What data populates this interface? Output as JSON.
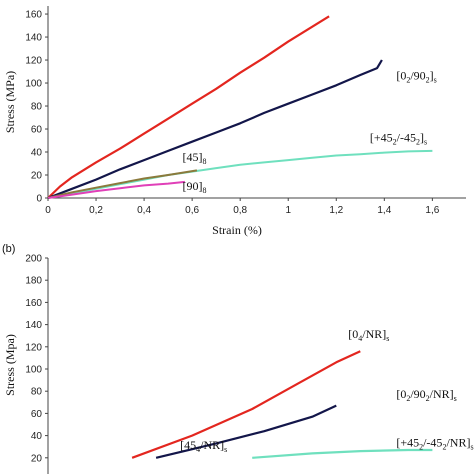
{
  "chart_data": [
    {
      "type": "line",
      "xlabel": "Strain (%)",
      "ylabel": "Stress (MPa)",
      "xlim": [
        0,
        1.7
      ],
      "ylim": [
        0,
        165
      ],
      "xticks": [
        "0",
        "0,2",
        "0,4",
        "0,6",
        "0,8",
        "1",
        "1,2",
        "1,4",
        "1,6"
      ],
      "yticks": [
        "0",
        "20",
        "40",
        "60",
        "80",
        "100",
        "120",
        "140",
        "160"
      ],
      "grid": false,
      "series": [
        {
          "color": "#e3261f",
          "x": [
            0,
            0.05,
            0.1,
            0.2,
            0.3,
            0.4,
            0.5,
            0.6,
            0.7,
            0.8,
            0.9,
            1.0,
            1.1,
            1.17
          ],
          "y": [
            0,
            10,
            18,
            31,
            43,
            56,
            69,
            82,
            95,
            109,
            122,
            136,
            149,
            158
          ]
        },
        {
          "name": "[0₂/90₂]ₛ",
          "color": "#13164a",
          "x": [
            0,
            0.1,
            0.2,
            0.3,
            0.4,
            0.5,
            0.6,
            0.7,
            0.8,
            0.9,
            1.0,
            1.1,
            1.2,
            1.3,
            1.37,
            1.39
          ],
          "y": [
            0,
            8,
            16,
            25,
            33,
            41,
            49,
            57,
            65,
            74,
            82,
            90,
            98,
            107,
            113,
            120
          ]
        },
        {
          "name": "[+45₂/-45₂]ₛ",
          "color": "#6fe0be",
          "x": [
            0,
            0.1,
            0.2,
            0.3,
            0.4,
            0.5,
            0.6,
            0.7,
            0.8,
            0.9,
            1.0,
            1.1,
            1.2,
            1.3,
            1.4,
            1.5,
            1.6
          ],
          "y": [
            0,
            4,
            8,
            12,
            16,
            20,
            23,
            26,
            29,
            31,
            33,
            35,
            37,
            38,
            39.5,
            40.5,
            41
          ]
        },
        {
          "name": "[45]₈",
          "color": "#8b7a3c",
          "x": [
            0,
            0.1,
            0.2,
            0.3,
            0.4,
            0.5,
            0.62
          ],
          "y": [
            0,
            5,
            9,
            13,
            17,
            20,
            24
          ]
        },
        {
          "name": "[90]₈",
          "color": "#e040b8",
          "x": [
            0,
            0.1,
            0.2,
            0.3,
            0.4,
            0.5,
            0.57
          ],
          "y": [
            0,
            3,
            6,
            8.5,
            11,
            12.5,
            14
          ]
        }
      ],
      "annotations": [
        {
          "text": "[0₂/90₂]ₛ",
          "x": 1.45,
          "y": 103
        },
        {
          "text": "[+45₂/-45₂]ₛ",
          "x": 1.34,
          "y": 49
        },
        {
          "text": "[45]₈",
          "x": 0.56,
          "y": 32
        },
        {
          "text": "[90]₈",
          "x": 0.56,
          "y": 7
        }
      ]
    },
    {
      "type": "line",
      "panel": "(b)",
      "ylabel": "Stress (Mpa)",
      "ylim": [
        0,
        200
      ],
      "yticks": [
        "20",
        "40",
        "60",
        "80",
        "100",
        "120",
        "140",
        "160",
        "180",
        "200"
      ],
      "grid": false,
      "series": [
        {
          "name": "[0₄/NR]ₛ",
          "color": "#e3261f",
          "x": [
            0.35,
            0.6,
            0.85,
            1.05,
            1.2,
            1.3
          ],
          "y": [
            20,
            40,
            64,
            88,
            106,
            116
          ]
        },
        {
          "name": "[0₂/90₂/NR]ₛ",
          "color": "#13164a",
          "x": [
            0.45,
            0.7,
            0.9,
            1.1,
            1.2
          ],
          "y": [
            20,
            33,
            44,
            57,
            67
          ]
        },
        {
          "name": "[+45₂/-45₂/NR]ₛ",
          "color": "#6fe0be",
          "x": [
            0.85,
            1.1,
            1.3,
            1.5,
            1.6
          ],
          "y": [
            20,
            24,
            26,
            27,
            27
          ]
        }
      ],
      "annotations": [
        {
          "text": "[0₄/NR]ₛ",
          "x": 1.25,
          "y": 128
        },
        {
          "text": "[0₂/90₂/NR]ₛ",
          "x": 1.45,
          "y": 74
        },
        {
          "text": "[+45₂/-45₂/NR]ₛ",
          "x": 1.45,
          "y": 30
        },
        {
          "text": "[45₄/NR]ₛ",
          "x": 0.55,
          "y": 28
        }
      ]
    }
  ]
}
